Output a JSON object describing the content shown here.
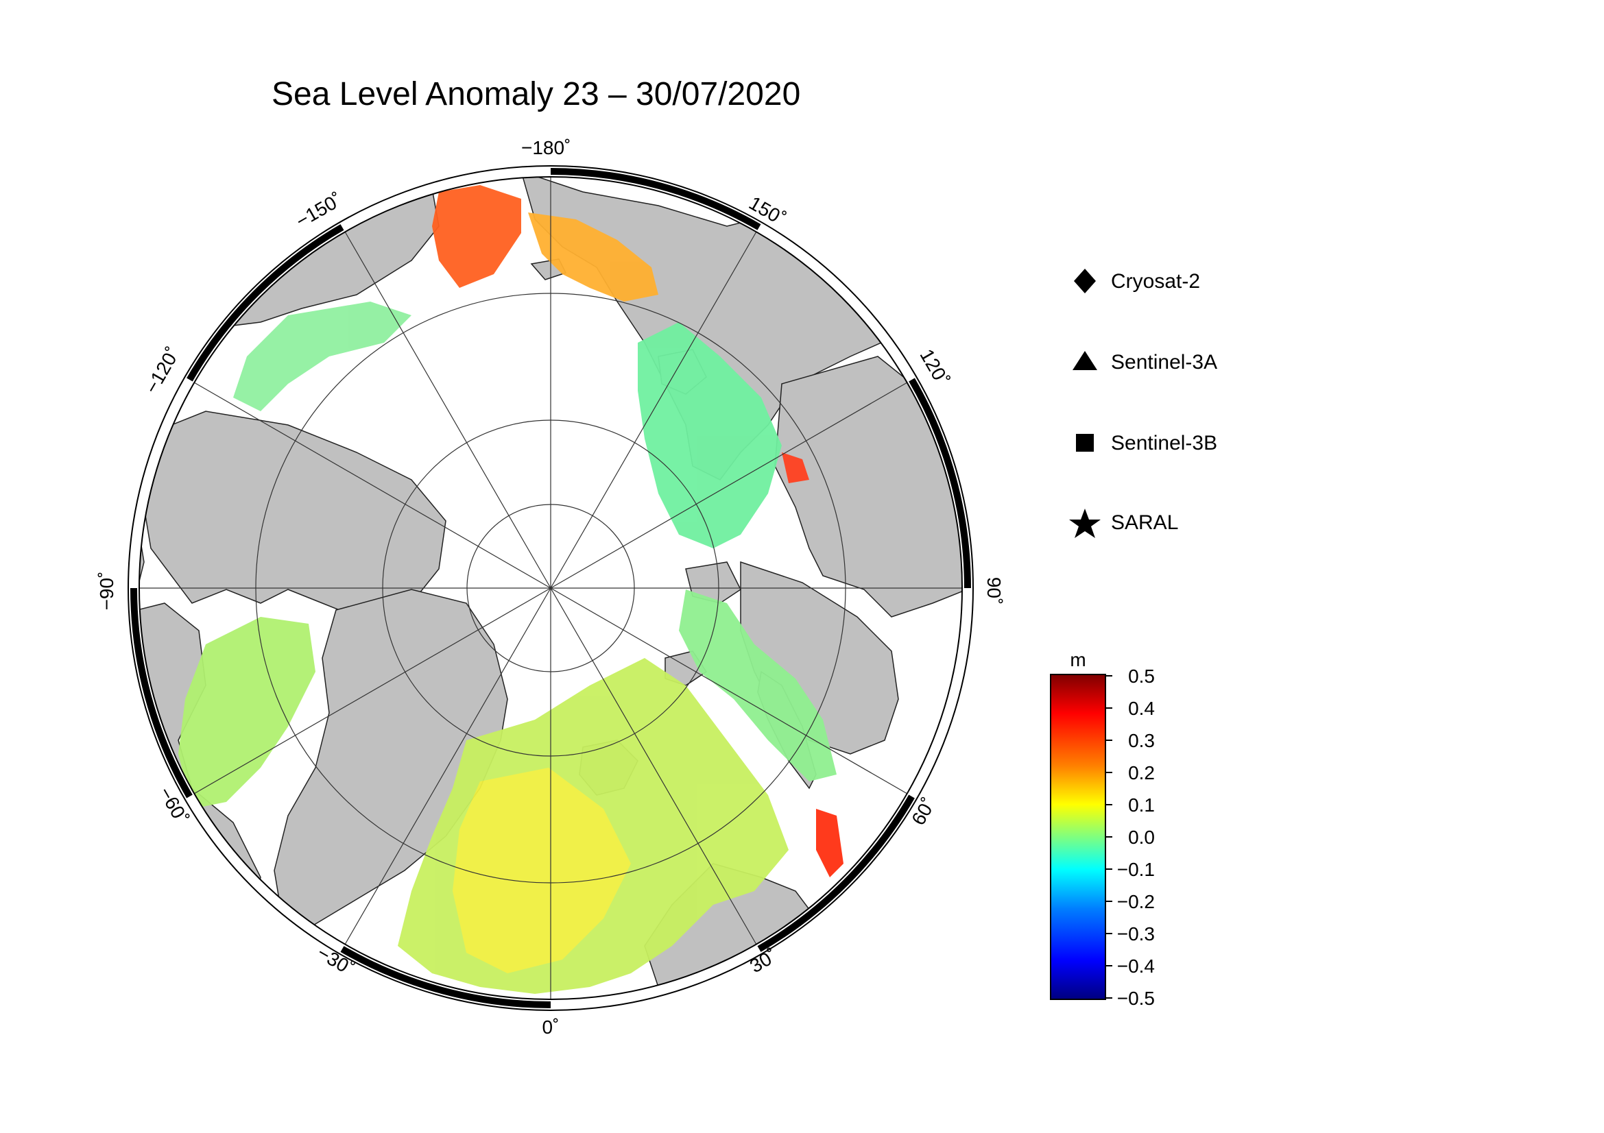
{
  "title": "Sea Level Anomaly 23 – 30/07/2020",
  "map": {
    "projection": "north polar stereographic",
    "longitude_labels": [
      "−180˚",
      "150˚",
      "120˚",
      "90˚",
      "60˚",
      "30˚",
      "0˚",
      "−30˚",
      "−60˚",
      "−90˚",
      "−120˚",
      "−150˚"
    ],
    "colors": {
      "land": "#c0c0c0",
      "ocean_no_data": "#ffffff",
      "frame": "#000000",
      "grid": "#333333"
    }
  },
  "legend": {
    "items": [
      {
        "label": "Cryosat-2",
        "symbol": "diamond-icon"
      },
      {
        "label": "Sentinel-3A",
        "symbol": "triangle-icon"
      },
      {
        "label": "Sentinel-3B",
        "symbol": "square-icon"
      },
      {
        "label": "SARAL",
        "symbol": "star-icon"
      }
    ]
  },
  "colorbar": {
    "unit": "m",
    "ticks": [
      "0.5",
      "0.4",
      "0.3",
      "0.2",
      "0.1",
      "0.0",
      "−0.1",
      "−0.2",
      "−0.3",
      "−0.4",
      "−0.5"
    ],
    "range": [
      -0.5,
      0.5
    ],
    "colormap": [
      "#00007f",
      "#0000ff",
      "#007fff",
      "#00ffff",
      "#7fff7f",
      "#ffff00",
      "#ff7f00",
      "#ff0000",
      "#7f0000"
    ]
  }
}
